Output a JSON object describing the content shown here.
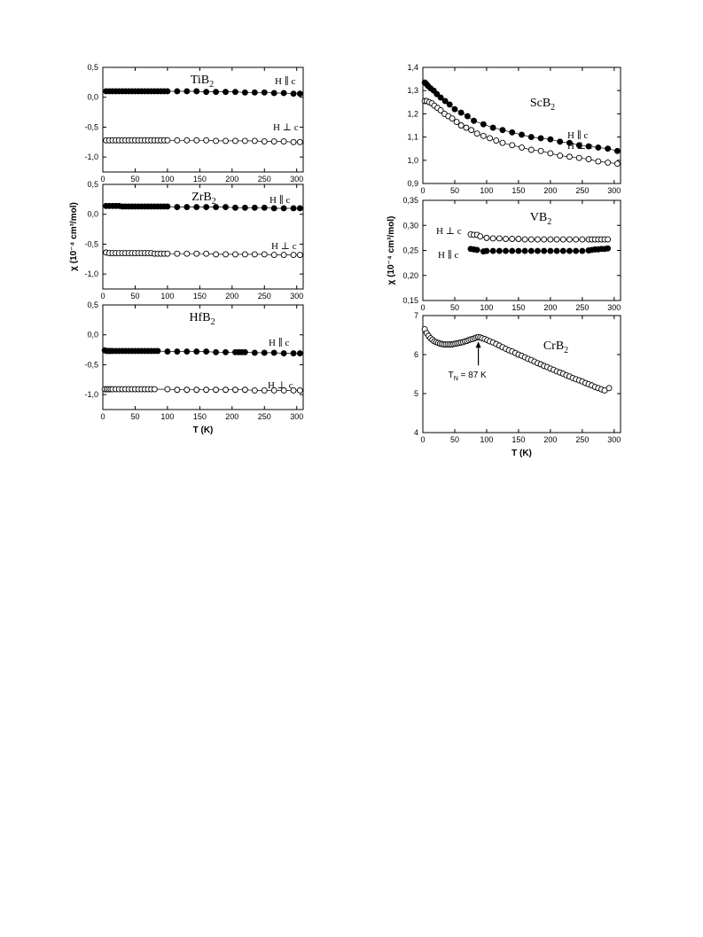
{
  "chart_data": [
    {
      "type": "scatter",
      "id": "tib2",
      "title": "TiB",
      "title_sub": "2",
      "xlim": [
        0,
        310
      ],
      "ylim": [
        -1.25,
        0.5
      ],
      "xticks": [
        0,
        50,
        100,
        150,
        200,
        250,
        300
      ],
      "yticks": [
        -1.0,
        -0.5,
        0.0,
        0.5
      ],
      "ytick_labels": [
        "-1,0",
        "-0,5",
        "0,0",
        "0,5"
      ],
      "show_xtick_labels": true,
      "series": [
        {
          "name": "H ∥ c",
          "marker": "filled",
          "x": [
            5,
            10,
            15,
            20,
            25,
            30,
            35,
            40,
            45,
            50,
            55,
            60,
            65,
            70,
            75,
            80,
            85,
            90,
            95,
            100,
            115,
            130,
            145,
            160,
            175,
            190,
            205,
            220,
            235,
            250,
            265,
            280,
            295,
            305
          ],
          "y": [
            0.1,
            0.1,
            0.1,
            0.1,
            0.1,
            0.1,
            0.1,
            0.1,
            0.1,
            0.1,
            0.1,
            0.1,
            0.1,
            0.1,
            0.1,
            0.1,
            0.1,
            0.1,
            0.1,
            0.1,
            0.1,
            0.1,
            0.1,
            0.09,
            0.09,
            0.09,
            0.09,
            0.08,
            0.08,
            0.08,
            0.07,
            0.07,
            0.06,
            0.06
          ]
        },
        {
          "name": "H ⊥ c",
          "marker": "open",
          "x": [
            5,
            10,
            15,
            20,
            25,
            30,
            35,
            40,
            45,
            50,
            55,
            60,
            65,
            70,
            75,
            80,
            85,
            90,
            95,
            100,
            115,
            130,
            145,
            160,
            175,
            190,
            205,
            220,
            235,
            250,
            265,
            280,
            295,
            305
          ],
          "y": [
            -0.72,
            -0.72,
            -0.72,
            -0.72,
            -0.72,
            -0.72,
            -0.72,
            -0.72,
            -0.72,
            -0.72,
            -0.72,
            -0.72,
            -0.72,
            -0.72,
            -0.72,
            -0.72,
            -0.72,
            -0.72,
            -0.72,
            -0.72,
            -0.72,
            -0.72,
            -0.72,
            -0.72,
            -0.73,
            -0.73,
            -0.73,
            -0.73,
            -0.73,
            -0.74,
            -0.74,
            -0.74,
            -0.75,
            -0.75
          ]
        }
      ]
    },
    {
      "type": "scatter",
      "id": "zrb2",
      "title": "ZrB",
      "title_sub": "2",
      "xlim": [
        0,
        310
      ],
      "ylim": [
        -1.25,
        0.5
      ],
      "xticks": [
        0,
        50,
        100,
        150,
        200,
        250,
        300
      ],
      "yticks": [
        -1.0,
        -0.5,
        0.0,
        0.5
      ],
      "ytick_labels": [
        "-1,0",
        "-0,5",
        "0,0",
        "0,5"
      ],
      "show_xtick_labels": true,
      "series": [
        {
          "name": "H ∥ c",
          "marker": "filled",
          "x": [
            5,
            10,
            15,
            20,
            25,
            30,
            35,
            40,
            45,
            50,
            55,
            60,
            65,
            70,
            75,
            80,
            85,
            90,
            95,
            100,
            115,
            130,
            145,
            160,
            175,
            190,
            205,
            220,
            235,
            250,
            265,
            280,
            295,
            305
          ],
          "y": [
            0.14,
            0.14,
            0.14,
            0.14,
            0.14,
            0.13,
            0.13,
            0.13,
            0.13,
            0.13,
            0.13,
            0.13,
            0.13,
            0.13,
            0.13,
            0.13,
            0.13,
            0.13,
            0.13,
            0.13,
            0.12,
            0.12,
            0.12,
            0.12,
            0.12,
            0.12,
            0.11,
            0.11,
            0.11,
            0.11,
            0.1,
            0.1,
            0.1,
            0.1
          ]
        },
        {
          "name": "H ⊥ c",
          "marker": "open",
          "x": [
            5,
            10,
            15,
            20,
            25,
            30,
            35,
            40,
            45,
            50,
            55,
            60,
            65,
            70,
            75,
            80,
            85,
            90,
            95,
            100,
            115,
            130,
            145,
            160,
            175,
            190,
            205,
            220,
            235,
            250,
            265,
            280,
            295,
            305
          ],
          "y": [
            -0.64,
            -0.65,
            -0.65,
            -0.65,
            -0.65,
            -0.65,
            -0.65,
            -0.65,
            -0.65,
            -0.65,
            -0.65,
            -0.65,
            -0.65,
            -0.65,
            -0.65,
            -0.66,
            -0.66,
            -0.66,
            -0.66,
            -0.66,
            -0.66,
            -0.66,
            -0.66,
            -0.66,
            -0.67,
            -0.67,
            -0.67,
            -0.67,
            -0.67,
            -0.67,
            -0.68,
            -0.68,
            -0.68,
            -0.68
          ]
        }
      ]
    },
    {
      "type": "scatter",
      "id": "hfb2",
      "title": "HfB",
      "title_sub": "2",
      "xlabel": "T (K)",
      "xlim": [
        0,
        310
      ],
      "ylim": [
        -1.25,
        0.5
      ],
      "xticks": [
        0,
        50,
        100,
        150,
        200,
        250,
        300
      ],
      "yticks": [
        -1.0,
        -0.5,
        0.0,
        0.5
      ],
      "ytick_labels": [
        "-1,0",
        "-0,5",
        "0,0",
        "0,5"
      ],
      "show_xtick_labels": true,
      "series": [
        {
          "name": "H ∥ c",
          "marker": "filled",
          "x": [
            3,
            6,
            9,
            12,
            15,
            20,
            25,
            30,
            35,
            40,
            45,
            50,
            55,
            60,
            65,
            70,
            75,
            80,
            85,
            100,
            115,
            130,
            145,
            160,
            175,
            190,
            205,
            210,
            215,
            220,
            235,
            250,
            265,
            280,
            295,
            305
          ],
          "y": [
            -0.26,
            -0.27,
            -0.27,
            -0.27,
            -0.27,
            -0.27,
            -0.27,
            -0.27,
            -0.27,
            -0.27,
            -0.27,
            -0.27,
            -0.27,
            -0.27,
            -0.27,
            -0.27,
            -0.27,
            -0.27,
            -0.27,
            -0.28,
            -0.28,
            -0.28,
            -0.28,
            -0.28,
            -0.29,
            -0.29,
            -0.29,
            -0.29,
            -0.29,
            -0.29,
            -0.3,
            -0.3,
            -0.3,
            -0.31,
            -0.31,
            -0.31
          ]
        },
        {
          "name": "H ⊥ c",
          "marker": "open",
          "x": [
            3,
            6,
            9,
            12,
            15,
            20,
            25,
            30,
            35,
            40,
            45,
            50,
            55,
            60,
            65,
            70,
            75,
            80,
            100,
            115,
            130,
            145,
            160,
            175,
            190,
            205,
            220,
            235,
            250,
            265,
            280,
            295,
            305
          ],
          "y": [
            -0.91,
            -0.91,
            -0.91,
            -0.91,
            -0.91,
            -0.91,
            -0.91,
            -0.91,
            -0.91,
            -0.91,
            -0.91,
            -0.91,
            -0.91,
            -0.91,
            -0.91,
            -0.91,
            -0.91,
            -0.91,
            -0.91,
            -0.92,
            -0.92,
            -0.92,
            -0.92,
            -0.92,
            -0.92,
            -0.92,
            -0.92,
            -0.93,
            -0.93,
            -0.93,
            -0.93,
            -0.93,
            -0.93
          ]
        }
      ]
    },
    {
      "type": "scatter",
      "id": "scb2",
      "title": "ScB",
      "title_sub": "2",
      "xlim": [
        0,
        310
      ],
      "ylim": [
        0.9,
        1.4
      ],
      "xticks": [
        0,
        50,
        100,
        150,
        200,
        250,
        300
      ],
      "yticks": [
        0.9,
        1.0,
        1.1,
        1.2,
        1.3,
        1.4
      ],
      "ytick_labels": [
        "0,9",
        "1,0",
        "1,1",
        "1,2",
        "1,3",
        "1,4"
      ],
      "show_xtick_labels": true,
      "series": [
        {
          "name": "H ∥ c",
          "marker": "filled",
          "x": [
            3,
            5,
            8,
            12,
            17,
            22,
            28,
            35,
            42,
            50,
            60,
            70,
            80,
            95,
            110,
            125,
            140,
            155,
            170,
            185,
            200,
            215,
            230,
            245,
            260,
            275,
            290,
            305
          ],
          "y": [
            1.335,
            1.33,
            1.32,
            1.31,
            1.3,
            1.285,
            1.27,
            1.255,
            1.24,
            1.22,
            1.205,
            1.19,
            1.17,
            1.155,
            1.14,
            1.13,
            1.12,
            1.11,
            1.1,
            1.095,
            1.09,
            1.08,
            1.075,
            1.065,
            1.06,
            1.055,
            1.05,
            1.04
          ]
        },
        {
          "name": "H ⊥ c",
          "marker": "open",
          "x": [
            3,
            6,
            10,
            14,
            18,
            23,
            28,
            34,
            40,
            46,
            53,
            60,
            68,
            76,
            85,
            95,
            105,
            115,
            125,
            140,
            155,
            170,
            185,
            200,
            215,
            230,
            245,
            260,
            275,
            290,
            305
          ],
          "y": [
            1.255,
            1.255,
            1.25,
            1.245,
            1.235,
            1.225,
            1.215,
            1.2,
            1.19,
            1.18,
            1.165,
            1.15,
            1.14,
            1.13,
            1.115,
            1.105,
            1.095,
            1.085,
            1.075,
            1.065,
            1.055,
            1.045,
            1.04,
            1.03,
            1.02,
            1.015,
            1.01,
            1.005,
            0.995,
            0.99,
            0.985
          ]
        }
      ]
    },
    {
      "type": "scatter",
      "id": "vb2",
      "title": "VB",
      "title_sub": "2",
      "ylabel": "χ (10⁻⁴ cm³/mol)",
      "xlim": [
        0,
        310
      ],
      "ylim": [
        0.15,
        0.35
      ],
      "xticks": [
        0,
        50,
        100,
        150,
        200,
        250,
        300
      ],
      "yticks": [
        0.15,
        0.2,
        0.25,
        0.3,
        0.35
      ],
      "ytick_labels": [
        "0,15",
        "0,20",
        "0,25",
        "0,30",
        "0,35"
      ],
      "show_xtick_labels": true,
      "series": [
        {
          "name": "H ⊥ c",
          "marker": "open",
          "x": [
            75,
            80,
            85,
            90,
            100,
            110,
            120,
            130,
            140,
            150,
            160,
            170,
            180,
            190,
            200,
            210,
            220,
            230,
            240,
            250,
            260,
            265,
            270,
            275,
            280,
            285,
            290
          ],
          "y": [
            0.282,
            0.281,
            0.281,
            0.278,
            0.275,
            0.274,
            0.274,
            0.273,
            0.273,
            0.273,
            0.272,
            0.272,
            0.272,
            0.272,
            0.272,
            0.272,
            0.272,
            0.272,
            0.272,
            0.272,
            0.272,
            0.272,
            0.272,
            0.272,
            0.272,
            0.272,
            0.272
          ]
        },
        {
          "name": "H ∥ c",
          "marker": "filled",
          "x": [
            75,
            80,
            85,
            95,
            100,
            110,
            120,
            130,
            140,
            150,
            160,
            170,
            180,
            190,
            200,
            210,
            220,
            230,
            240,
            250,
            260,
            265,
            270,
            275,
            280,
            285,
            290
          ],
          "y": [
            0.253,
            0.252,
            0.251,
            0.248,
            0.249,
            0.249,
            0.249,
            0.249,
            0.249,
            0.249,
            0.249,
            0.249,
            0.249,
            0.249,
            0.249,
            0.249,
            0.249,
            0.249,
            0.249,
            0.249,
            0.25,
            0.251,
            0.252,
            0.252,
            0.253,
            0.253,
            0.254
          ]
        }
      ]
    },
    {
      "type": "scatter",
      "id": "crb2",
      "title": "CrB",
      "title_sub": "2",
      "xlabel": "T (K)",
      "xlim": [
        0,
        310
      ],
      "ylim": [
        4,
        7
      ],
      "xticks": [
        0,
        50,
        100,
        150,
        200,
        250,
        300
      ],
      "yticks": [
        4,
        5,
        6,
        7
      ],
      "ytick_labels": [
        "4",
        "5",
        "6",
        "7"
      ],
      "show_xtick_labels": true,
      "annotation": {
        "text": "T",
        "sub": "N",
        "rest": " = 87 K",
        "x": 87,
        "y": 6.45
      },
      "series": [
        {
          "name": "",
          "marker": "open",
          "x": [
            3,
            6,
            9,
            12,
            15,
            18,
            21,
            24,
            27,
            30,
            33,
            36,
            39,
            42,
            45,
            48,
            51,
            54,
            57,
            60,
            63,
            66,
            69,
            72,
            75,
            78,
            81,
            84,
            87,
            90,
            93,
            97,
            101,
            105,
            110,
            115,
            120,
            125,
            130,
            135,
            140,
            145,
            150,
            155,
            160,
            165,
            170,
            175,
            180,
            185,
            190,
            195,
            200,
            205,
            210,
            215,
            220,
            225,
            230,
            235,
            240,
            245,
            250,
            255,
            260,
            265,
            270,
            275,
            280,
            285,
            292
          ],
          "y": [
            6.65,
            6.55,
            6.48,
            6.42,
            6.38,
            6.34,
            6.32,
            6.3,
            6.28,
            6.27,
            6.26,
            6.26,
            6.26,
            6.26,
            6.26,
            6.27,
            6.28,
            6.29,
            6.3,
            6.31,
            6.32,
            6.34,
            6.35,
            6.37,
            6.39,
            6.4,
            6.42,
            6.44,
            6.45,
            6.44,
            6.42,
            6.4,
            6.37,
            6.34,
            6.31,
            6.27,
            6.23,
            6.19,
            6.15,
            6.11,
            6.08,
            6.04,
            6.0,
            5.97,
            5.93,
            5.89,
            5.86,
            5.82,
            5.78,
            5.75,
            5.71,
            5.68,
            5.64,
            5.61,
            5.57,
            5.54,
            5.51,
            5.47,
            5.44,
            5.4,
            5.37,
            5.34,
            5.31,
            5.27,
            5.24,
            5.21,
            5.17,
            5.14,
            5.11,
            5.08,
            5.14
          ]
        }
      ]
    }
  ],
  "left_ylabel": "χ (10⁻⁴ cm³/mol)"
}
